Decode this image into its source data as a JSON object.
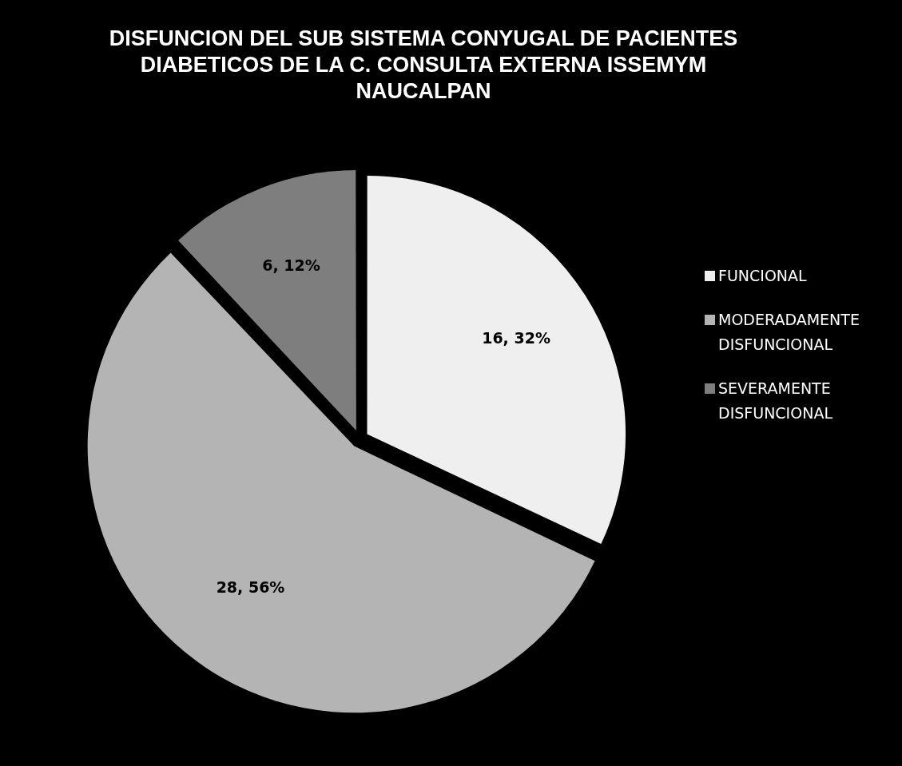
{
  "chart_data": {
    "type": "pie",
    "title": "DISFUNCION DEL SUB SISTEMA CONYUGAL DE PACIENTES DIABETICOS DE LA C. CONSULTA EXTERNA ISSEMYM NAUCALPAN",
    "categories": [
      "FUNCIONAL",
      "MODERADAMENTE DISFUNCIONAL",
      "SEVERAMENTE DISFUNCIONAL"
    ],
    "values": [
      16,
      28,
      6
    ],
    "colors": [
      "#efefef",
      "#b4b4b4",
      "#7e7e7e"
    ],
    "value_labels": [
      "16, 32%",
      "28, 56%",
      "6, 12%"
    ],
    "legend": "right"
  }
}
